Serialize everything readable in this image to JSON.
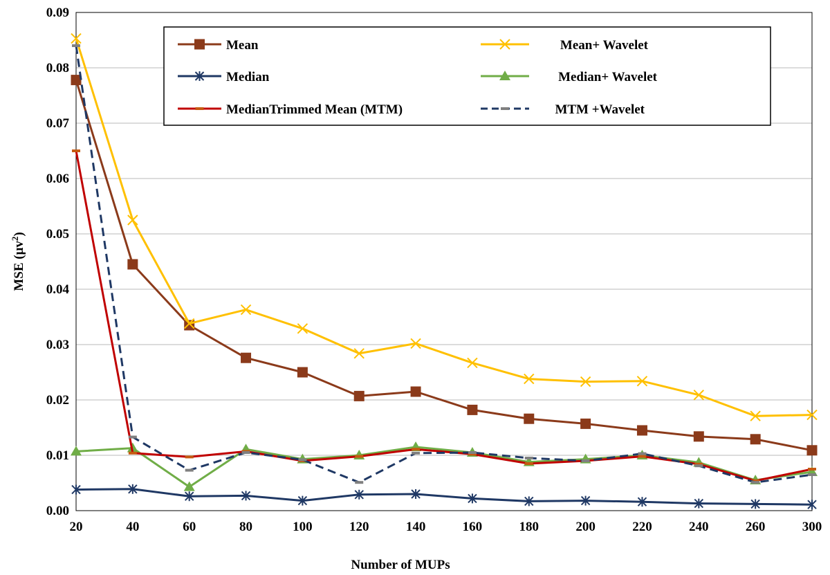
{
  "chart_data": {
    "type": "line",
    "xlabel": "Number of MUPs",
    "ylabel": "MSE (μv²)",
    "ylabel_base": "MSE (μv",
    "ylabel_sup": "2",
    "ylabel_close": ")",
    "ylim": [
      0,
      0.09
    ],
    "y_ticks": [
      "0.00",
      "0.01",
      "0.02",
      "0.03",
      "0.04",
      "0.05",
      "0.06",
      "0.07",
      "0.08",
      "0.09"
    ],
    "y_tick_values": [
      0,
      0.01,
      0.02,
      0.03,
      0.04,
      0.05,
      0.06,
      0.07,
      0.08,
      0.09
    ],
    "categories": [
      "20",
      "40",
      "60",
      "80",
      "100",
      "120",
      "140",
      "160",
      "180",
      "200",
      "220",
      "240",
      "260",
      "300"
    ],
    "grid": "horizontal",
    "legend_position": "top-right",
    "series": [
      {
        "name": "Mean",
        "color": "#8B3A1A",
        "marker": "square",
        "dash": "solid",
        "values": [
          0.0778,
          0.0445,
          0.0335,
          0.0276,
          0.025,
          0.0207,
          0.0215,
          0.0182,
          0.0166,
          0.0157,
          0.0145,
          0.0134,
          0.0129,
          0.0109
        ]
      },
      {
        "name": "Mean+ Wavelet",
        "color": "#FFC000",
        "marker": "x",
        "dash": "solid",
        "values": [
          0.0853,
          0.0525,
          0.0338,
          0.0363,
          0.0329,
          0.0284,
          0.0302,
          0.0267,
          0.0238,
          0.0233,
          0.0234,
          0.0209,
          0.0171,
          0.0173
        ]
      },
      {
        "name": "Median",
        "color": "#1F3864",
        "marker": "asterisk",
        "dash": "solid",
        "values": [
          0.0038,
          0.0039,
          0.0026,
          0.0027,
          0.0018,
          0.0029,
          0.003,
          0.0022,
          0.0017,
          0.0018,
          0.0016,
          0.0013,
          0.0012,
          0.0011
        ]
      },
      {
        "name": "Median+ Wavelet",
        "color": "#70AD47",
        "marker": "triangle",
        "dash": "solid",
        "values": [
          0.0107,
          0.0113,
          0.0043,
          0.0111,
          0.0093,
          0.01,
          0.0115,
          0.0105,
          0.0088,
          0.0093,
          0.01,
          0.0087,
          0.0055,
          0.007
        ]
      },
      {
        "name": "MedianTrimmed Mean (MTM)",
        "color": "#C00000",
        "marker": "dash",
        "dash": "solid",
        "values": [
          0.065,
          0.0104,
          0.0097,
          0.0107,
          0.009,
          0.0098,
          0.0111,
          0.0102,
          0.0085,
          0.009,
          0.0098,
          0.0084,
          0.0054,
          0.0075
        ]
      },
      {
        "name": "MTM +Wavelet",
        "color": "#1F3864",
        "marker": "dash",
        "dash": "dashed",
        "values": [
          0.084,
          0.0133,
          0.0073,
          0.0105,
          0.0092,
          0.0051,
          0.0104,
          0.0105,
          0.0095,
          0.009,
          0.0103,
          0.0081,
          0.0051,
          0.0065
        ]
      }
    ]
  }
}
